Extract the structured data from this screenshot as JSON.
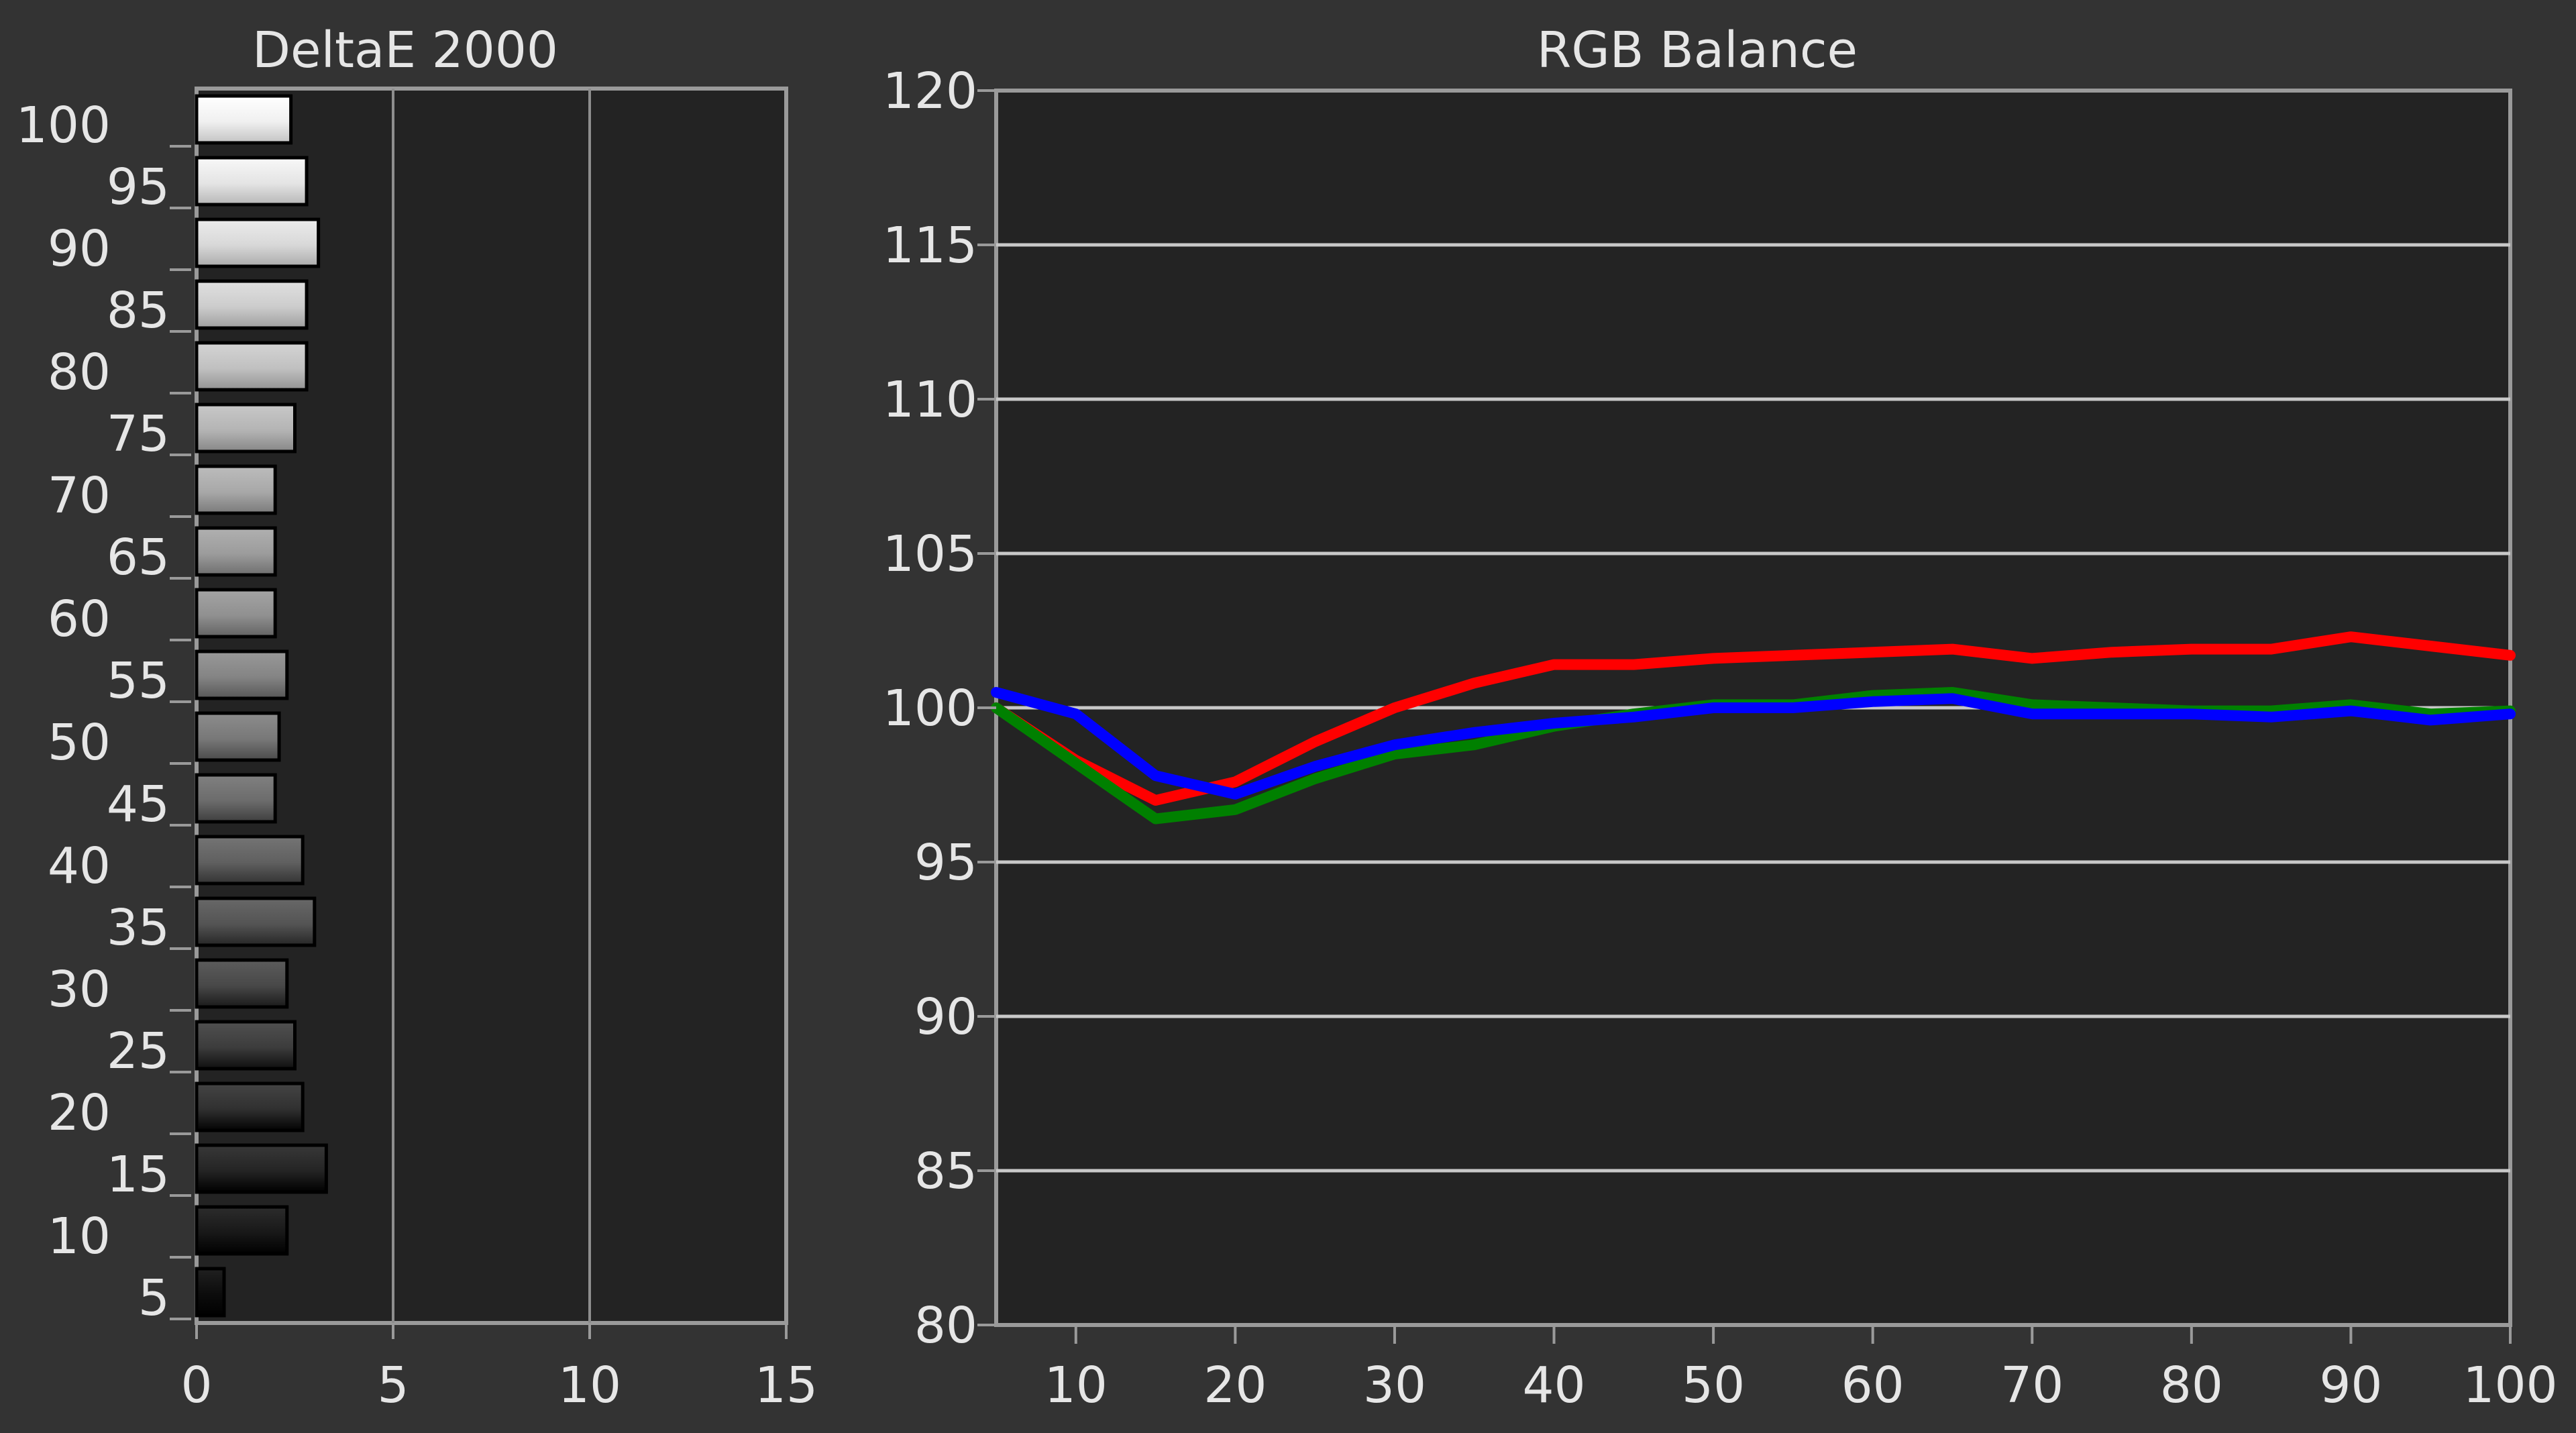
{
  "colors": {
    "background": "#333333",
    "plot_background": "#232323",
    "frame": "#9a9a9a",
    "grid": "#c8c8c8",
    "text": "#e6e6e6",
    "red": "#ff0000",
    "green": "#008000",
    "blue": "#0000ff"
  },
  "chart_data": [
    {
      "type": "bar",
      "orientation": "horizontal",
      "title": "DeltaE 2000",
      "xlabel": "",
      "ylabel": "",
      "xlim": [
        0,
        15
      ],
      "x_ticks": [
        "0",
        "5",
        "10",
        "15"
      ],
      "categories": [
        "100",
        "95",
        "90",
        "85",
        "80",
        "75",
        "70",
        "65",
        "60",
        "55",
        "50",
        "45",
        "40",
        "35",
        "30",
        "25",
        "20",
        "15",
        "10",
        "5"
      ],
      "values": [
        2.4,
        2.8,
        3.1,
        2.8,
        2.8,
        2.5,
        2.0,
        2.0,
        2.0,
        2.3,
        2.1,
        2.0,
        2.7,
        3.0,
        2.3,
        2.5,
        2.7,
        3.3,
        2.3,
        0.7
      ],
      "bar_fill": "grayscale shade matching gray level",
      "grid": true
    },
    {
      "type": "line",
      "title": "RGB Balance",
      "xlabel": "",
      "ylabel": "",
      "xlim": [
        5,
        100
      ],
      "ylim": [
        80,
        120
      ],
      "x_ticks": [
        "10",
        "20",
        "30",
        "40",
        "50",
        "60",
        "70",
        "80",
        "90",
        "100"
      ],
      "y_ticks": [
        "120",
        "115",
        "110",
        "105",
        "100",
        "95",
        "90",
        "85",
        "80"
      ],
      "x": [
        5,
        10,
        15,
        20,
        25,
        30,
        35,
        40,
        45,
        50,
        55,
        60,
        65,
        70,
        75,
        80,
        85,
        90,
        95,
        100
      ],
      "series": [
        {
          "color": "#ff0000",
          "values": [
            100.0,
            98.3,
            97.0,
            97.6,
            98.9,
            100.0,
            100.8,
            101.4,
            101.4,
            101.6,
            101.7,
            101.8,
            101.9,
            101.6,
            101.8,
            101.9,
            101.9,
            102.3,
            102.0,
            101.7
          ]
        },
        {
          "color": "#008000",
          "values": [
            100.0,
            98.2,
            96.4,
            96.7,
            97.7,
            98.5,
            98.8,
            99.4,
            99.8,
            100.1,
            100.1,
            100.4,
            100.5,
            100.1,
            100.0,
            99.9,
            99.9,
            100.1,
            99.8,
            99.9
          ]
        },
        {
          "color": "#0000ff",
          "values": [
            100.5,
            99.8,
            97.8,
            97.2,
            98.1,
            98.8,
            99.2,
            99.5,
            99.7,
            100.0,
            100.0,
            100.2,
            100.3,
            99.8,
            99.8,
            99.8,
            99.7,
            99.9,
            99.6,
            99.8
          ]
        }
      ],
      "grid": true
    }
  ]
}
